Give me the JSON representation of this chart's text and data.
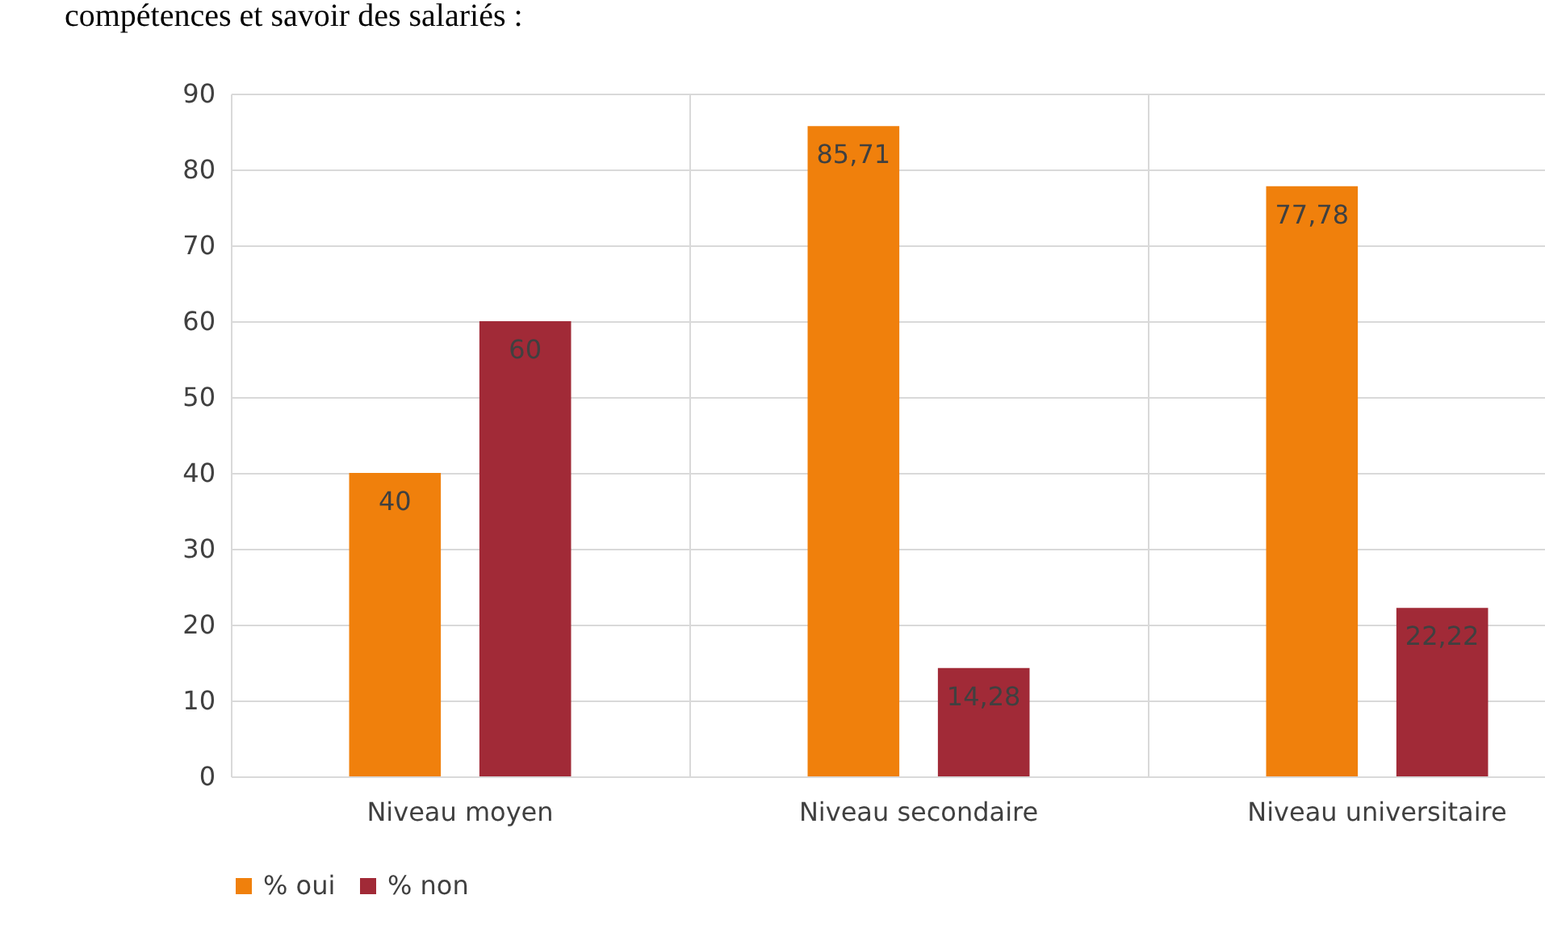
{
  "chart_data": {
    "type": "bar",
    "title": "compétences et savoir des salariés :",
    "categories": [
      "Niveau moyen",
      "Niveau secondaire",
      "Niveau universitaire"
    ],
    "series": [
      {
        "name": "% oui",
        "color": "#f0800c",
        "values": [
          40,
          85.71,
          77.78
        ],
        "value_labels": [
          "40",
          "85,71",
          "77,78"
        ]
      },
      {
        "name": "% non",
        "color": "#a12a37",
        "values": [
          60,
          14.28,
          22.22
        ],
        "value_labels": [
          "60",
          "14,28",
          "22,22"
        ]
      }
    ],
    "ylim": [
      0,
      90
    ],
    "yticks": [
      0,
      10,
      20,
      30,
      40,
      50,
      60,
      70,
      80,
      90
    ],
    "grid": true,
    "legend": "bottom"
  }
}
